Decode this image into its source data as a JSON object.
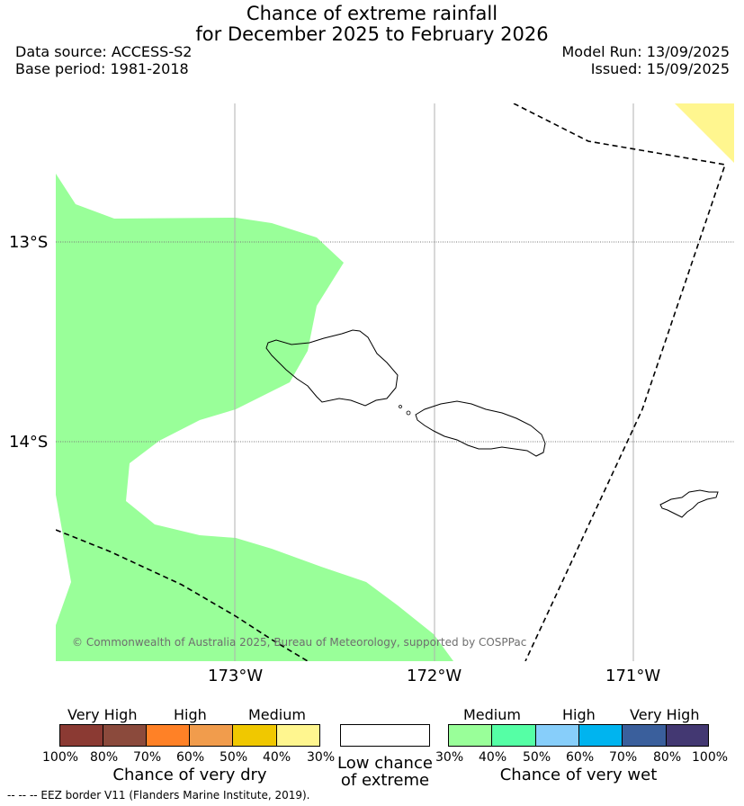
{
  "title_line1": "Chance of extreme rainfall",
  "title_line2": "for December 2025 to February 2026",
  "data_source": "Data source: ACCESS-S2",
  "base_period": "Base period: 1981-2018",
  "model_run": "Model Run: 13/09/2025",
  "issued": "Issued: 15/09/2025",
  "map": {
    "lat_ticks": [
      "13°S",
      "14°S"
    ],
    "lon_ticks": [
      "173°W",
      "172°W",
      "171°W"
    ],
    "copyright": "© Commonwealth of Australia 2025, Bureau of Meteorology, supported by COSPPac",
    "colors": {
      "medium_wet": "#99ff99",
      "medium_dry": "#fff68f",
      "gridline": "#b0b0b0",
      "eez_border": "#000000"
    }
  },
  "legend": {
    "dry": {
      "levels": [
        "Very High",
        "High",
        "Medium"
      ],
      "percents": [
        "100%",
        "80%",
        "70%",
        "60%",
        "50%",
        "40%",
        "30%"
      ],
      "caption": "Chance of very dry",
      "colors": [
        "#8b3a33",
        "#8b4a3c",
        "#ff8126",
        "#f19c4c",
        "#f0c800",
        "#fff68f"
      ]
    },
    "low": {
      "caption_line1": "Low chance",
      "caption_line2": "of extreme",
      "color": "#ffffff"
    },
    "wet": {
      "levels": [
        "Medium",
        "High",
        "Very High"
      ],
      "percents": [
        "30%",
        "40%",
        "50%",
        "60%",
        "70%",
        "80%",
        "100%"
      ],
      "caption": "Chance of very wet",
      "colors": [
        "#99ff99",
        "#55ffa5",
        "#87cefa",
        "#00b4ef",
        "#3a5f9c",
        "#433872"
      ]
    }
  },
  "footer": "-- -- -- EEZ border V11 (Flanders Marine Institute, 2019)."
}
